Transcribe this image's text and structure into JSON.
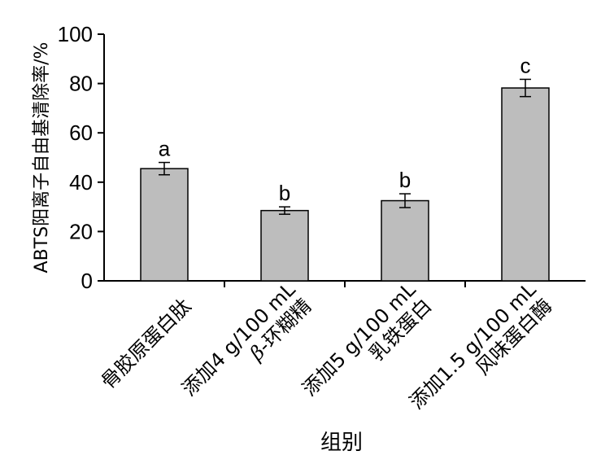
{
  "chart_data": {
    "type": "bar",
    "categories": [
      [
        "骨胶原蛋白肽"
      ],
      [
        "添加4 g/100 mL",
        "β-环糊精"
      ],
      [
        "添加5 g/100 mL",
        "乳铁蛋白"
      ],
      [
        "添加1.5 g/100 mL",
        "风味蛋白酶"
      ]
    ],
    "values": [
      45.5,
      28.5,
      32.5,
      78.2
    ],
    "errors": [
      2.5,
      1.5,
      2.8,
      3.5
    ],
    "significance": [
      "a",
      "b",
      "b",
      "c"
    ],
    "xlabel": "组别",
    "ylabel": "ABTS阳离子自由基清除率/%",
    "ylim": [
      0,
      100
    ],
    "yticks": [
      0,
      20,
      40,
      60,
      80,
      100
    ],
    "bar_color": "#bdbdbd",
    "grid": false
  }
}
